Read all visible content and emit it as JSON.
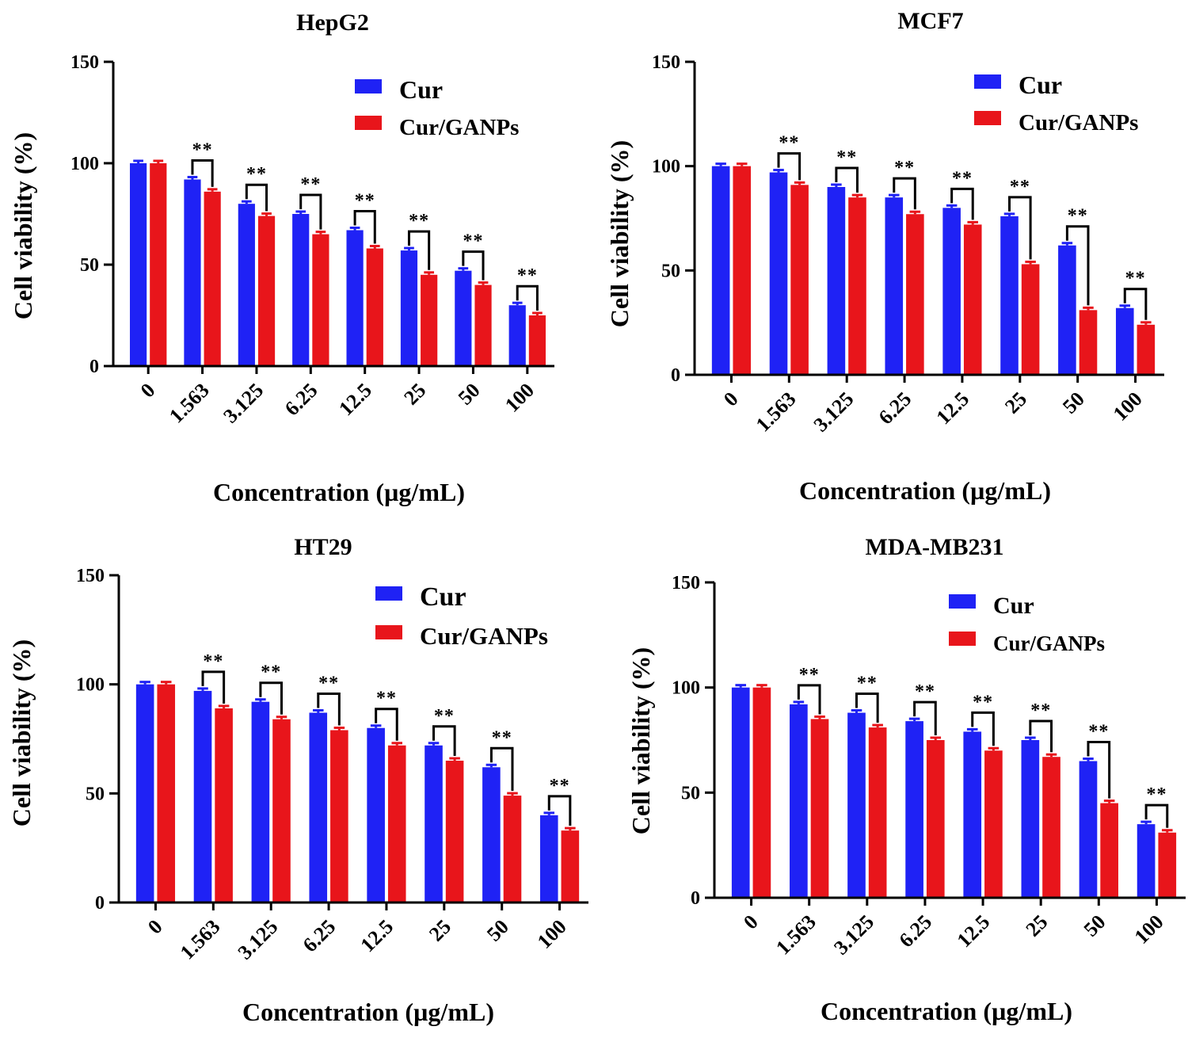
{
  "chart_data": [
    {
      "type": "bar",
      "title": "HepG2",
      "xlabel": "Concentration (µg/mL)",
      "ylabel": "Cell viability (%)",
      "ylim": [
        0,
        150
      ],
      "yticks": [
        0,
        50,
        100,
        150
      ],
      "categories": [
        "0",
        "1.563",
        "3.125",
        "6.25",
        "12.5",
        "25",
        "50",
        "100"
      ],
      "series": [
        {
          "name": "Cur",
          "color": "#1f22f5",
          "values": [
            100,
            92,
            80,
            75,
            67,
            57,
            47,
            30
          ]
        },
        {
          "name": "Cur/GANPs",
          "color": "#e8151b",
          "values": [
            100,
            86,
            74,
            65,
            58,
            45,
            40,
            25
          ]
        }
      ],
      "significance": [
        "",
        "**",
        "**",
        "**",
        "**",
        "**",
        "**",
        "**"
      ],
      "legend_position": "top-right"
    },
    {
      "type": "bar",
      "title": "MCF7",
      "xlabel": "Concentration (µg/mL)",
      "ylabel": "Cell viability  (%)",
      "ylim": [
        0,
        150
      ],
      "yticks": [
        0,
        50,
        100,
        150
      ],
      "categories": [
        "0",
        "1.563",
        "3.125",
        "6.25",
        "12.5",
        "25",
        "50",
        "100"
      ],
      "series": [
        {
          "name": "Cur",
          "color": "#1f22f5",
          "values": [
            100,
            97,
            90,
            85,
            80,
            76,
            62,
            32
          ]
        },
        {
          "name": "Cur/GANPs",
          "color": "#e8151b",
          "values": [
            100,
            91,
            85,
            77,
            72,
            53,
            31,
            24
          ]
        }
      ],
      "significance": [
        "",
        "**",
        "**",
        "**",
        "**",
        "**",
        "**",
        "**"
      ],
      "legend_position": "top-right"
    },
    {
      "type": "bar",
      "title": "HT29",
      "xlabel": "Concentration (µg/mL)",
      "ylabel": "Cell viability (%)",
      "ylim": [
        0,
        150
      ],
      "yticks": [
        0,
        50,
        100,
        150
      ],
      "categories": [
        "0",
        "1.563",
        "3.125",
        "6.25",
        "12.5",
        "25",
        "50",
        "100"
      ],
      "series": [
        {
          "name": "Cur",
          "color": "#1f22f5",
          "values": [
            100,
            97,
            92,
            87,
            80,
            72,
            62,
            40
          ]
        },
        {
          "name": "Cur/GANPs",
          "color": "#e8151b",
          "values": [
            100,
            89,
            84,
            79,
            72,
            65,
            49,
            33
          ]
        }
      ],
      "significance": [
        "",
        "**",
        "**",
        "**",
        "**",
        "**",
        "**",
        "**"
      ],
      "legend_position": "top-right"
    },
    {
      "type": "bar",
      "title": "MDA-MB231",
      "xlabel": "Concentration (µg/mL)",
      "ylabel": "Cell viability  (%)",
      "ylim": [
        0,
        150
      ],
      "yticks": [
        0,
        50,
        100,
        150
      ],
      "categories": [
        "0",
        "1.563",
        "3.125",
        "6.25",
        "12.5",
        "25",
        "50",
        "100"
      ],
      "series": [
        {
          "name": "Cur",
          "color": "#1f22f5",
          "values": [
            100,
            92,
            88,
            84,
            79,
            75,
            65,
            35
          ]
        },
        {
          "name": "Cur/GANPs",
          "color": "#e8151b",
          "values": [
            100,
            85,
            81,
            75,
            70,
            67,
            45,
            31
          ]
        }
      ],
      "significance": [
        "",
        "**",
        "**",
        "**",
        "**",
        "**",
        "**",
        "**"
      ],
      "legend_position": "top-right"
    }
  ]
}
